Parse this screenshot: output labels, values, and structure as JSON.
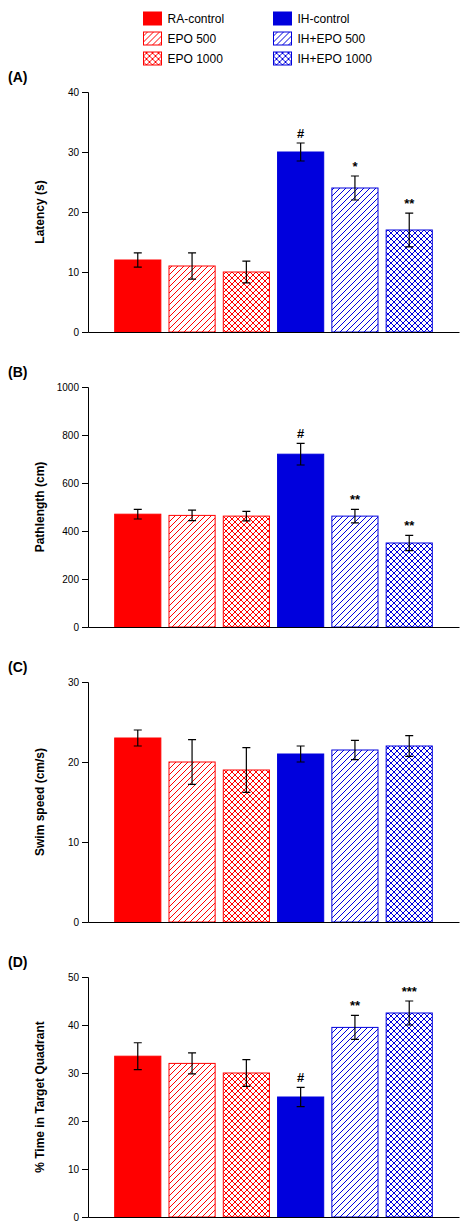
{
  "chart_data": [
    {
      "type": "bar",
      "title": "(A)",
      "y_label": "Latency (s)",
      "categories": [
        null
      ],
      "series": [
        {
          "name": "RA-control",
          "color": "#ff0000",
          "values": [
            12.0
          ],
          "errors": [
            1.2
          ]
        },
        {
          "name": "EPO 500",
          "color": "#ff0000",
          "values": [
            11.0
          ],
          "errors": [
            2.2
          ]
        },
        {
          "name": "EPO 1000",
          "color": "#ff0000",
          "values": [
            10.0
          ],
          "errors": [
            1.8
          ]
        },
        {
          "name": "IH-control",
          "color": "#0000dd",
          "values": [
            30.0
          ],
          "errors": [
            1.5
          ]
        },
        {
          "name": "IH+EPO 500",
          "color": "#0000dd",
          "values": [
            24.0
          ],
          "errors": [
            2.0
          ]
        },
        {
          "name": "IH+EPO 1000",
          "color": "#0000dd",
          "values": [
            17.0
          ],
          "errors": [
            2.8
          ]
        }
      ],
      "annotations": [
        null,
        null,
        null,
        "#",
        "*",
        "**"
      ],
      "ylim": [
        0,
        40
      ],
      "yticks": [
        0,
        10,
        20,
        30,
        40
      ],
      "grid": false,
      "legend": "top"
    },
    {
      "type": "bar",
      "title": "(B)",
      "y_label": "Pathlength (cm)",
      "categories": [
        null
      ],
      "series": [
        {
          "color": "#ff0000",
          "values": [
            470
          ],
          "errors": [
            20
          ]
        },
        {
          "color": "#ff0000",
          "values": [
            465
          ],
          "errors": [
            22
          ]
        },
        {
          "color": "#ff0000",
          "values": [
            462
          ],
          "errors": [
            20
          ]
        },
        {
          "color": "#0000dd",
          "values": [
            720
          ],
          "errors": [
            45
          ]
        },
        {
          "color": "#0000dd",
          "values": [
            462
          ],
          "errors": [
            28
          ]
        },
        {
          "color": "#0000dd",
          "values": [
            350
          ],
          "errors": [
            32
          ]
        }
      ],
      "annotations": [
        null,
        null,
        null,
        "#",
        "**",
        "**"
      ],
      "ylim": [
        0,
        1000
      ],
      "yticks": [
        0,
        200,
        400,
        600,
        800,
        1000
      ],
      "grid": false
    },
    {
      "type": "bar",
      "title": "(C)",
      "y_label": "Swim speed (cm/s)",
      "categories": [
        null
      ],
      "series": [
        {
          "color": "#ff0000",
          "values": [
            23.0
          ],
          "errors": [
            1.0
          ]
        },
        {
          "color": "#ff0000",
          "values": [
            20.0
          ],
          "errors": [
            2.8
          ]
        },
        {
          "color": "#ff0000",
          "values": [
            19.0
          ],
          "errors": [
            2.8
          ]
        },
        {
          "color": "#0000dd",
          "values": [
            21.0
          ],
          "errors": [
            1.0
          ]
        },
        {
          "color": "#0000dd",
          "values": [
            21.5
          ],
          "errors": [
            1.2
          ]
        },
        {
          "color": "#0000dd",
          "values": [
            22.0
          ],
          "errors": [
            1.3
          ]
        }
      ],
      "ylim": [
        0,
        30
      ],
      "yticks": [
        0,
        10,
        20,
        30
      ],
      "grid": false
    },
    {
      "type": "bar",
      "title": "(D)",
      "y_label": "% Time in Target Quadrant",
      "categories": [
        null
      ],
      "series": [
        {
          "color": "#ff0000",
          "values": [
            33.5
          ],
          "errors": [
            2.8
          ]
        },
        {
          "color": "#ff0000",
          "values": [
            32.0
          ],
          "errors": [
            2.2
          ]
        },
        {
          "color": "#ff0000",
          "values": [
            30.0
          ],
          "errors": [
            2.8
          ]
        },
        {
          "color": "#0000dd",
          "values": [
            25.0
          ],
          "errors": [
            2.0
          ]
        },
        {
          "color": "#0000dd",
          "values": [
            39.5
          ],
          "errors": [
            2.5
          ]
        },
        {
          "color": "#0000dd",
          "values": [
            42.5
          ],
          "errors": [
            2.5
          ]
        }
      ],
      "annotations": [
        null,
        null,
        null,
        "#",
        "**",
        "***"
      ],
      "ylim": [
        0,
        50
      ],
      "yticks": [
        0,
        10,
        20,
        30,
        40,
        50
      ],
      "grid": false
    }
  ]
}
